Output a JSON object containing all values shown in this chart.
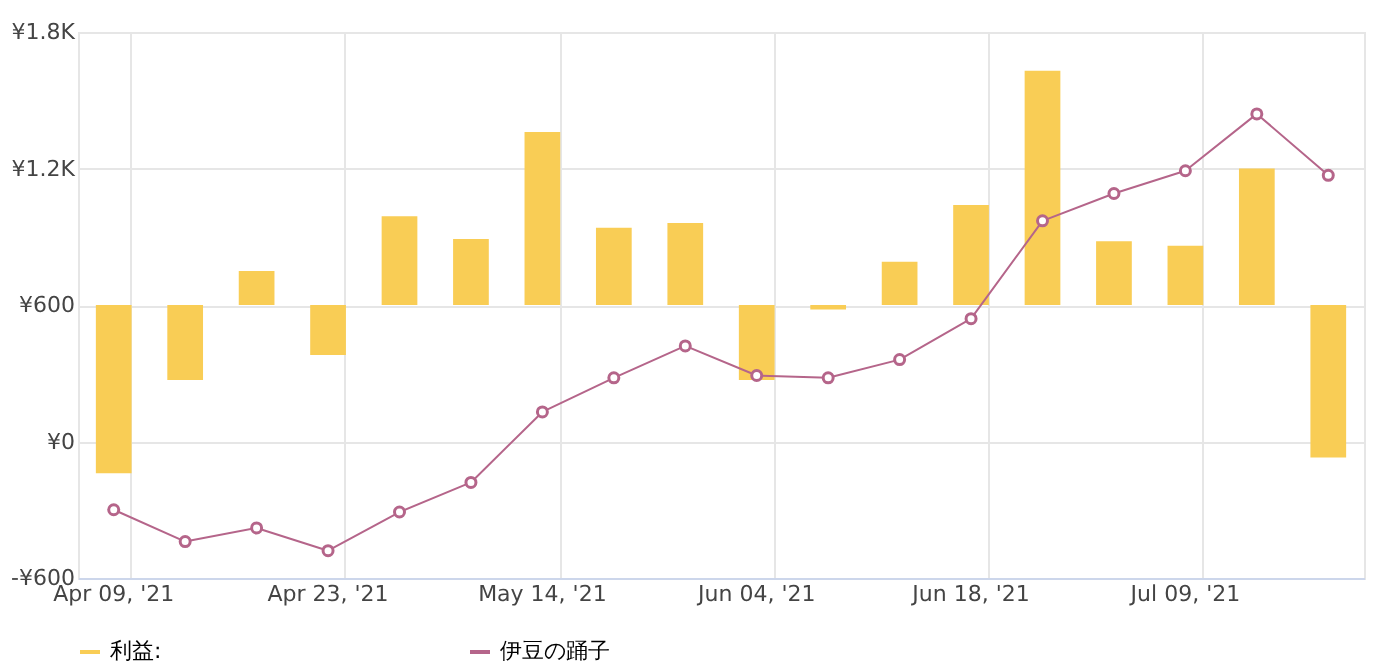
{
  "chart_data": {
    "type": "bar",
    "categories": [
      "Apr 09, '21",
      null,
      null,
      "Apr 23, '21",
      null,
      null,
      "May 14, '21",
      null,
      null,
      "Jun 04, '21",
      null,
      null,
      "Jun 18, '21",
      null,
      null,
      "Jul 09, '21",
      null,
      null
    ],
    "ylim": [
      -600,
      1800
    ],
    "yticks": [
      {
        "value": -600,
        "label": "-¥600"
      },
      {
        "value": 0,
        "label": "¥0"
      },
      {
        "value": 600,
        "label": "¥600"
      },
      {
        "value": 1200,
        "label": "¥1.2K"
      },
      {
        "value": 1800,
        "label": "¥1.8K"
      }
    ],
    "series": [
      {
        "name": "利益:",
        "color": "#f9cd55",
        "base": [
          600,
          600,
          600,
          600,
          600,
          600,
          600,
          600,
          600,
          600,
          600,
          600,
          600,
          600,
          600,
          600,
          600,
          600
        ],
        "values": [
          -740,
          -330,
          150,
          -220,
          390,
          290,
          760,
          340,
          360,
          -330,
          -20,
          190,
          440,
          1030,
          280,
          260,
          600,
          -670
        ]
      },
      {
        "name": "伊豆の踊子",
        "type": "line",
        "color": "#b5658a",
        "marker": "circle",
        "line_style": "solid",
        "values": [
          -300,
          -440,
          -380,
          -480,
          -310,
          -180,
          130,
          280,
          420,
          290,
          280,
          360,
          540,
          970,
          1090,
          1190,
          1440,
          1170
        ]
      }
    ],
    "grid": true,
    "legend": "bottom"
  }
}
